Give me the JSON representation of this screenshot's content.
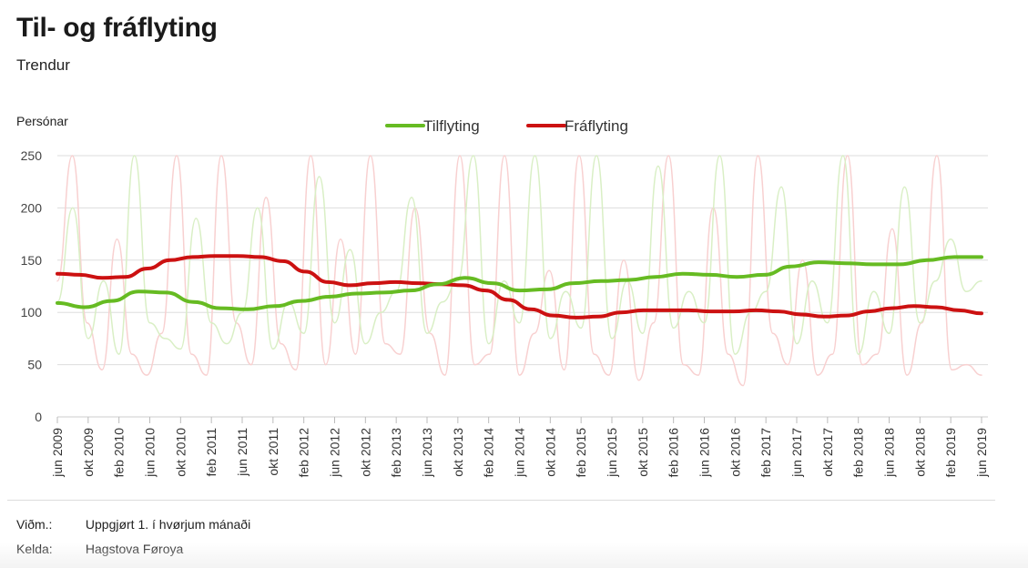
{
  "title": "Til- og fráflyting",
  "subtitle": "Trendur",
  "notes": [
    {
      "label": "Viðm.:",
      "value": "Uppgjørt 1. í hvørjum mánaði"
    },
    {
      "label": "Kelda:",
      "value": "Hagstova Føroya"
    }
  ],
  "colors": {
    "tilflyting": "#66bb22",
    "fraflyting": "#cc1111",
    "tilflyting_raw": "#d9efc5",
    "fraflyting_raw": "#f8d0d0",
    "grid": "#dddddd"
  },
  "chart_data": {
    "type": "line",
    "title": "Til- og fráflyting",
    "subtitle": "Trendur",
    "ylabel": "Persónar",
    "xlabel": "",
    "ylim": [
      0,
      250
    ],
    "yticks": [
      0,
      50,
      100,
      150,
      200,
      250
    ],
    "grid": true,
    "legend_position": "top-center",
    "xtick_labels": [
      "jun 2009",
      "okt 2009",
      "feb 2010",
      "jun 2010",
      "okt 2010",
      "feb 2011",
      "jun 2011",
      "okt 2011",
      "feb 2012",
      "jun 2012",
      "okt 2012",
      "feb 2013",
      "jun 2013",
      "okt 2013",
      "feb 2014",
      "jun 2014",
      "okt 2014",
      "feb 2015",
      "jun 2015",
      "okt 2015",
      "feb 2016",
      "jun 2016",
      "okt 2016",
      "feb 2017",
      "jun 2017",
      "okt 2017",
      "feb 2018",
      "jun 2018",
      "okt 2018",
      "feb 2019",
      "jun 2019"
    ],
    "series": [
      {
        "name": "Tilflyting",
        "values": [
          109,
          105,
          111,
          120,
          119,
          110,
          104,
          103,
          106,
          111,
          115,
          118,
          119,
          121,
          127,
          133,
          128,
          121,
          122,
          128,
          130,
          131,
          134,
          137,
          136,
          134,
          136,
          144,
          148,
          147,
          146,
          146,
          150,
          153,
          153
        ],
        "raw": [
          110,
          200,
          75,
          130,
          60,
          250,
          90,
          75,
          65,
          190,
          90,
          70,
          100,
          200,
          65,
          110,
          80,
          230,
          90,
          160,
          70,
          100,
          120,
          210,
          80,
          110,
          130,
          250,
          70,
          130,
          90,
          250,
          75,
          120,
          85,
          250,
          75,
          130,
          80,
          240,
          85,
          120,
          90,
          250,
          60,
          100,
          120,
          220,
          70,
          130,
          90,
          250,
          60,
          120,
          80,
          220,
          90,
          130,
          170,
          120,
          130
        ]
      },
      {
        "name": "Fráflyting",
        "values": [
          137,
          136,
          133,
          134,
          142,
          150,
          153,
          154,
          154,
          153,
          149,
          139,
          129,
          126,
          128,
          129,
          128,
          127,
          126,
          121,
          112,
          103,
          97,
          95,
          96,
          100,
          102,
          102,
          102,
          101,
          101,
          102,
          101,
          98,
          96,
          97,
          101,
          104,
          106,
          105,
          102,
          99
        ],
        "raw": [
          130,
          250,
          90,
          45,
          170,
          60,
          40,
          80,
          250,
          60,
          40,
          250,
          90,
          50,
          210,
          70,
          45,
          250,
          50,
          170,
          60,
          250,
          70,
          60,
          200,
          80,
          40,
          250,
          50,
          60,
          250,
          40,
          80,
          140,
          45,
          250,
          60,
          40,
          150,
          35,
          90,
          250,
          50,
          40,
          200,
          60,
          30,
          250,
          80,
          50,
          150,
          40,
          60,
          250,
          50,
          60,
          180,
          40,
          90,
          250,
          45,
          50,
          40
        ]
      }
    ]
  }
}
